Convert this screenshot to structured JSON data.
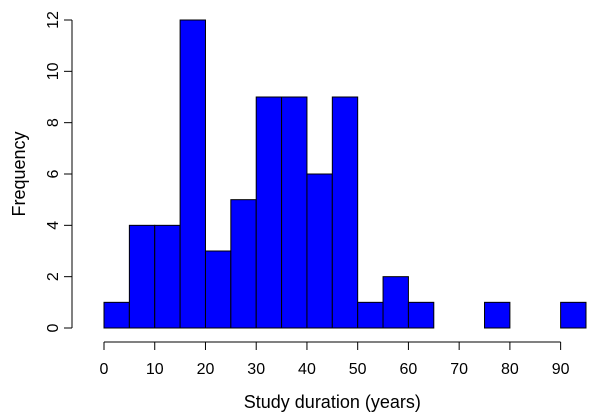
{
  "chart_data": {
    "type": "bar",
    "title": "",
    "xlabel": "Study duration (years)",
    "ylabel": "Frequency",
    "bin_edges": [
      0,
      5,
      10,
      15,
      20,
      25,
      30,
      35,
      40,
      45,
      50,
      55,
      60,
      65,
      70,
      75,
      80,
      85,
      90,
      95
    ],
    "values": [
      1,
      4,
      4,
      12,
      3,
      5,
      9,
      9,
      6,
      9,
      1,
      2,
      1,
      0,
      0,
      1,
      0,
      0,
      1
    ],
    "xlim": [
      0,
      95
    ],
    "ylim": [
      0,
      12
    ],
    "x_ticks": [
      0,
      10,
      20,
      30,
      40,
      50,
      60,
      70,
      80,
      90
    ],
    "y_ticks": [
      0,
      2,
      4,
      6,
      8,
      10,
      12
    ],
    "bar_color": "#0000ff",
    "grid": false,
    "legend": "none"
  }
}
